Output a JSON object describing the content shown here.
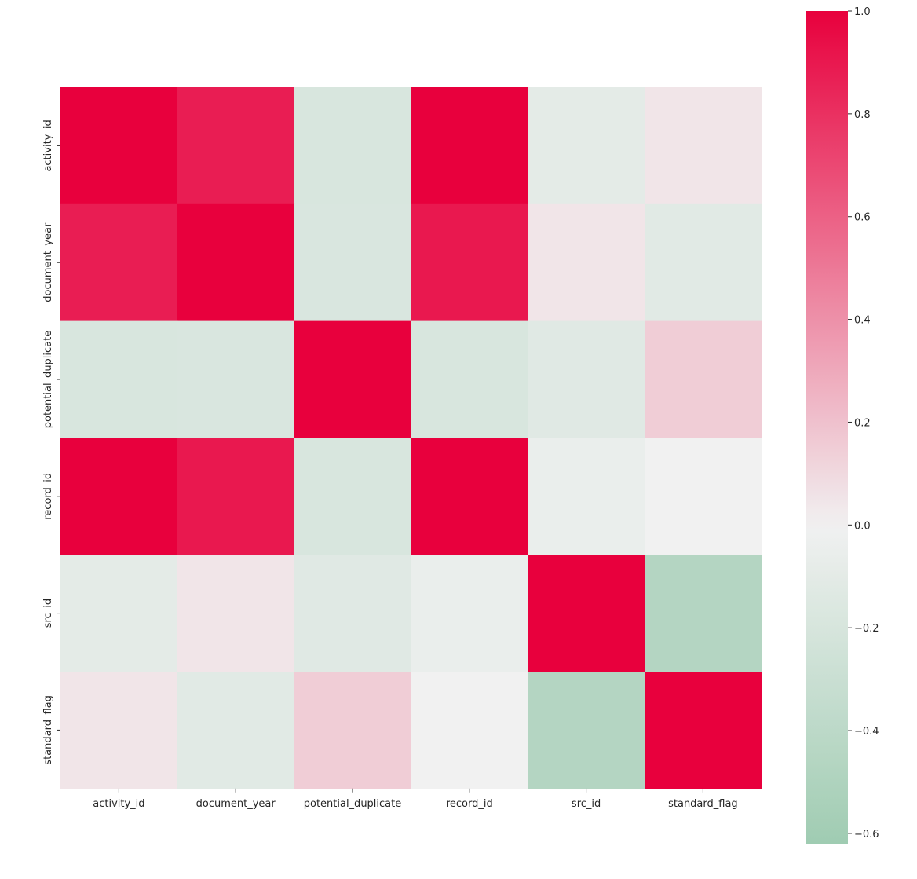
{
  "chart_data": {
    "type": "heatmap",
    "title": "",
    "xlabel": "",
    "ylabel": "",
    "x_categories": [
      "activity_id",
      "document_year",
      "potential_duplicate",
      "record_id",
      "src_id",
      "standard_flag"
    ],
    "y_categories": [
      "activity_id",
      "document_year",
      "potential_duplicate",
      "record_id",
      "src_id",
      "standard_flag"
    ],
    "values": [
      [
        1.0,
        0.88,
        -0.19,
        1.0,
        -0.1,
        0.05
      ],
      [
        0.88,
        1.0,
        -0.18,
        0.9,
        0.05,
        -0.12
      ],
      [
        -0.19,
        -0.18,
        1.0,
        -0.19,
        -0.13,
        0.15
      ],
      [
        1.0,
        0.9,
        -0.19,
        1.0,
        -0.05,
        0.0
      ],
      [
        -0.1,
        0.05,
        -0.13,
        -0.05,
        1.0,
        -0.46
      ],
      [
        0.05,
        -0.12,
        0.15,
        0.0,
        -0.46,
        1.0
      ]
    ],
    "colorbar": {
      "vmin": -0.62,
      "vmax": 1.0,
      "ticks": [
        1.0,
        0.8,
        0.6,
        0.4,
        0.2,
        0.0,
        -0.2,
        -0.4,
        -0.6
      ],
      "tick_labels": [
        "1.0",
        "0.8",
        "0.6",
        "0.4",
        "0.2",
        "0.0",
        "−0.2",
        "−0.4",
        "−0.6"
      ]
    },
    "colormap": {
      "negative": "#6db58b",
      "center": "#f1f1f1",
      "positive": "#e8003d"
    },
    "grid": false,
    "legend": "colorbar-right"
  }
}
